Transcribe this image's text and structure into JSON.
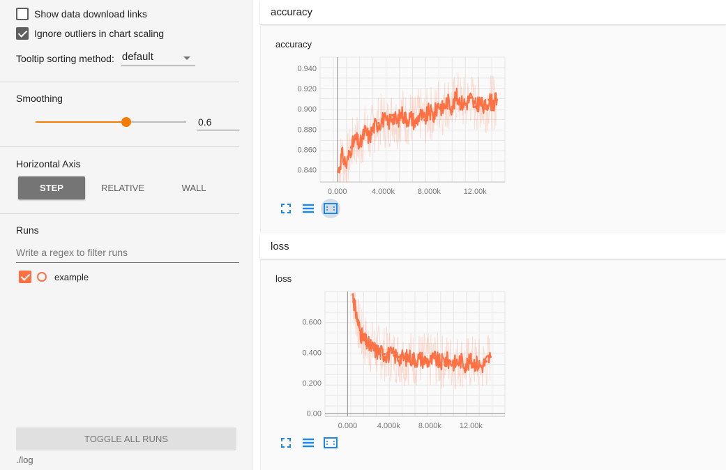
{
  "sidebar": {
    "show_download_links": {
      "label": "Show data download links",
      "checked": false
    },
    "ignore_outliers": {
      "label": "Ignore outliers in chart scaling",
      "checked": true
    },
    "tooltip_sorting": {
      "label": "Tooltip sorting method:",
      "value": "default"
    },
    "smoothing": {
      "title": "Smoothing",
      "value": "0.6",
      "fraction": 0.6
    },
    "horizontal_axis": {
      "title": "Horizontal Axis",
      "options": [
        "STEP",
        "RELATIVE",
        "WALL"
      ],
      "selected": "STEP"
    },
    "runs": {
      "title": "Runs",
      "filter_placeholder": "Write a regex to filter runs",
      "items": [
        {
          "label": "example",
          "checked": true,
          "color": "#ff7043"
        }
      ]
    },
    "toggle_all_label": "TOGGLE ALL RUNS",
    "logdir": "./log"
  },
  "accent_color": "#f57c00",
  "run_color": "#ff7043",
  "cards": {
    "accuracy": {
      "header": "accuracy"
    },
    "loss": {
      "header": "loss"
    }
  },
  "chart_data": [
    {
      "type": "line",
      "title": "accuracy",
      "x_ticks": [
        "0.000",
        "4.000k",
        "8.000k",
        "12.00k"
      ],
      "y_ticks": [
        "0.840",
        "0.860",
        "0.880",
        "0.900",
        "0.920",
        "0.940"
      ],
      "xlim": [
        -1500,
        14600
      ],
      "ylim": [
        0.828,
        0.951
      ],
      "grid": true,
      "series": [
        {
          "x": [
            100,
            400,
            800,
            1200,
            1600,
            2000,
            2400,
            2800,
            3200,
            3600,
            4000,
            4400,
            4800,
            5200,
            5600,
            6000,
            6400,
            6800,
            7200,
            7600,
            8000,
            8400,
            8800,
            9200,
            9600,
            10000,
            10400,
            10800,
            11200,
            11600,
            12000,
            12400,
            12800,
            13200,
            13600,
            13900
          ],
          "y": [
            0.838,
            0.855,
            0.845,
            0.862,
            0.87,
            0.864,
            0.878,
            0.872,
            0.883,
            0.886,
            0.89,
            0.885,
            0.894,
            0.887,
            0.896,
            0.89,
            0.892,
            0.886,
            0.895,
            0.889,
            0.898,
            0.893,
            0.905,
            0.9,
            0.908,
            0.902,
            0.912,
            0.906,
            0.905,
            0.911,
            0.902,
            0.907,
            0.9,
            0.909,
            0.905,
            0.909
          ]
        }
      ]
    },
    {
      "type": "line",
      "title": "loss",
      "x_ticks": [
        "0.000",
        "4.000k",
        "8.000k",
        "12.00k"
      ],
      "y_ticks": [
        "0.00",
        "0.200",
        "0.400",
        "0.600"
      ],
      "xlim": [
        -2200,
        15300
      ],
      "ylim": [
        -0.02,
        0.8
      ],
      "grid": true,
      "series": [
        {
          "x": [
            500,
            700,
            1000,
            1300,
            1600,
            2000,
            2400,
            2800,
            3200,
            3600,
            4000,
            4500,
            5000,
            5500,
            6000,
            6500,
            7000,
            7500,
            8000,
            8500,
            9000,
            9500,
            10000,
            10500,
            11000,
            11500,
            12000,
            12500,
            13000,
            13500,
            13900
          ],
          "y": [
            0.78,
            0.7,
            0.6,
            0.52,
            0.48,
            0.45,
            0.43,
            0.41,
            0.4,
            0.39,
            0.385,
            0.38,
            0.37,
            0.36,
            0.37,
            0.355,
            0.36,
            0.35,
            0.34,
            0.36,
            0.33,
            0.35,
            0.34,
            0.33,
            0.35,
            0.32,
            0.34,
            0.33,
            0.31,
            0.34,
            0.37
          ]
        }
      ]
    }
  ]
}
